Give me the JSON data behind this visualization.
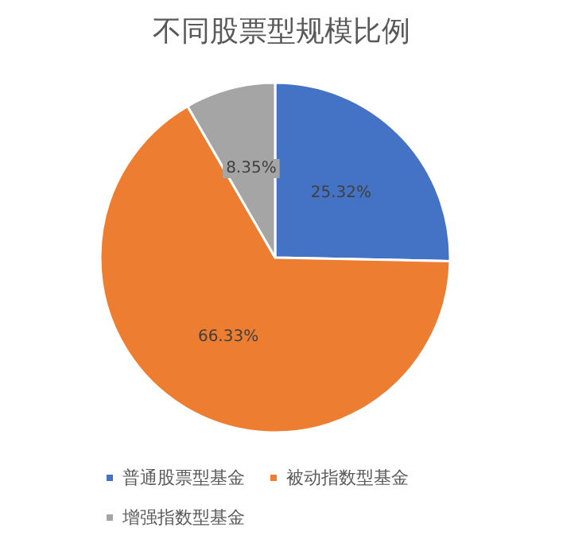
{
  "chart_data": {
    "type": "pie",
    "title": "不同股票型规模比例",
    "categories": [
      "普通股票型基金",
      "被动指数型基金",
      "增强指数型基金"
    ],
    "values": [
      25.32,
      66.33,
      8.35
    ],
    "colors": [
      "#4472c4",
      "#ed7d31",
      "#a5a5a5"
    ],
    "value_labels": [
      "25.32%",
      "66.33%",
      "8.35%"
    ],
    "legend": "bottom"
  }
}
